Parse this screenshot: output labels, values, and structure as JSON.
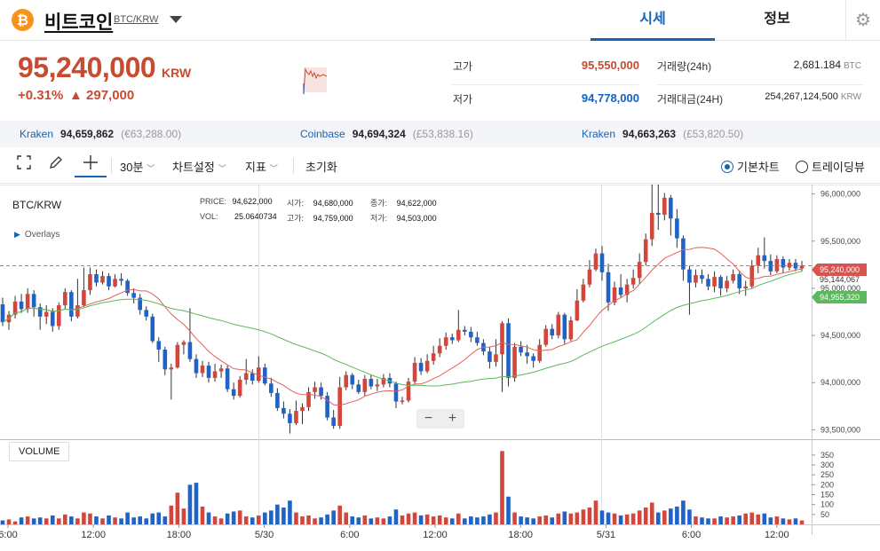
{
  "header": {
    "coin_symbol": "₿",
    "coin_name": "비트코인",
    "pair": "BTC/KRW",
    "tabs": [
      {
        "label": "시세",
        "active": true
      },
      {
        "label": "정보",
        "active": false
      }
    ],
    "settings_icon": "gear-icon"
  },
  "summary": {
    "price": "95,240,000",
    "unit": "KRW",
    "change_pct": "+0.31%",
    "change_abs": "▲ 297,000",
    "high_label": "고가",
    "high_value": "95,550,000",
    "low_label": "저가",
    "low_value": "94,778,000",
    "volume_label": "거래량(24h)",
    "volume_value": "2,681.184",
    "volume_unit": "BTC",
    "amount_label": "거래대금(24H)",
    "amount_value": "254,267,124,500",
    "amount_unit": "KRW"
  },
  "exchanges": [
    {
      "name": "Kraken",
      "price": "94,659,862",
      "converted": "(€63,288.00)"
    },
    {
      "name": "Coinbase",
      "price": "94,694,324",
      "converted": "(£53,838.16)"
    },
    {
      "name": "Kraken",
      "price": "94,663,263",
      "converted": "(£53,820.50)"
    }
  ],
  "toolbar": {
    "interval": "30분",
    "chart_settings": "차트설정",
    "indicators": "지표",
    "reset": "초기화",
    "radio_basic": "기본차트",
    "radio_tradingview": "트레이딩뷰"
  },
  "chart": {
    "pair_label": "BTC/KRW",
    "overlays_label": "Overlays",
    "ohlc": {
      "price_label": "PRICE:",
      "price_value": "94,622,000",
      "vol_label": "VOL:",
      "vol_value": "25.0640734",
      "open_label": "시가:",
      "open_value": "94,680,000",
      "high_label": "고가:",
      "high_value": "94,759,000",
      "close_label": "종가:",
      "close_value": "94,622,000",
      "low_label": "저가:",
      "low_value": "94,503,000"
    },
    "zoom_out": "−",
    "zoom_in": "+",
    "volume_label": "VOLUME",
    "last_price_tag": "95,240,000",
    "ma_short_tag": "95,144,067",
    "ma_long_tag": "94,955,320",
    "colors": {
      "up": "#d2463b",
      "down": "#1f63c7",
      "ma_short": "#e0625b",
      "ma_long": "#5cb85c"
    }
  },
  "chart_data": {
    "type": "candlestick",
    "yticks": [
      "96,000,000",
      "95,500,000",
      "95,000,000",
      "94,500,000",
      "94,000,000",
      "93,500,000"
    ],
    "ylim": [
      93400000,
      96100000
    ],
    "volume_ticks": [
      "350",
      "300",
      "250",
      "200",
      "150",
      "100",
      "50"
    ],
    "xticks": [
      "6:00",
      "12:00",
      "18:00",
      "5/30",
      "6:00",
      "12:00",
      "18:00",
      "5/31",
      "6:00",
      "12:00"
    ],
    "candles": [
      [
        94830000,
        94640000,
        94900000,
        94600000,
        20
      ],
      [
        94640000,
        94720000,
        94760000,
        94560000,
        25
      ],
      [
        94720000,
        94860000,
        94920000,
        94680000,
        15
      ],
      [
        94860000,
        94780000,
        94940000,
        94740000,
        35
      ],
      [
        94780000,
        94940000,
        95000000,
        94740000,
        40
      ],
      [
        94940000,
        94800000,
        94980000,
        94700000,
        30
      ],
      [
        94800000,
        94700000,
        94840000,
        94560000,
        35
      ],
      [
        94700000,
        94750000,
        94820000,
        94620000,
        30
      ],
      [
        94750000,
        94600000,
        94790000,
        94540000,
        45
      ],
      [
        94600000,
        94820000,
        94850000,
        94560000,
        30
      ],
      [
        94820000,
        94960000,
        95000000,
        94780000,
        50
      ],
      [
        94960000,
        94700000,
        94980000,
        94650000,
        40
      ],
      [
        94700000,
        94820000,
        95100000,
        94680000,
        30
      ],
      [
        94820000,
        94980000,
        95220000,
        94800000,
        60
      ],
      [
        94980000,
        95150000,
        95220000,
        94930000,
        55
      ],
      [
        95150000,
        95060000,
        95200000,
        95020000,
        40
      ],
      [
        95060000,
        95130000,
        95180000,
        95040000,
        30
      ],
      [
        95130000,
        95020000,
        95160000,
        94980000,
        45
      ],
      [
        95020000,
        95100000,
        95150000,
        95010000,
        35
      ],
      [
        95100000,
        95080000,
        95160000,
        95030000,
        30
      ],
      [
        95080000,
        94950000,
        95100000,
        94920000,
        60
      ],
      [
        94950000,
        94900000,
        95000000,
        94840000,
        35
      ],
      [
        94900000,
        94770000,
        94940000,
        94720000,
        40
      ],
      [
        94770000,
        94700000,
        94810000,
        94660000,
        30
      ],
      [
        94700000,
        94440000,
        94730000,
        94420000,
        55
      ],
      [
        94440000,
        94350000,
        94480000,
        94220000,
        60
      ],
      [
        94350000,
        94140000,
        94380000,
        94080000,
        40
      ],
      [
        94140000,
        94160000,
        94200000,
        93820000,
        95
      ],
      [
        94160000,
        94400000,
        94430000,
        94150000,
        160
      ],
      [
        94400000,
        94430000,
        94450000,
        94300000,
        80
      ],
      [
        94430000,
        94250000,
        94790000,
        94220000,
        200
      ],
      [
        94250000,
        94100000,
        94300000,
        94050000,
        210
      ],
      [
        94100000,
        94180000,
        94230000,
        94060000,
        90
      ],
      [
        94180000,
        94050000,
        94220000,
        94000000,
        60
      ],
      [
        94050000,
        94120000,
        94200000,
        94010000,
        40
      ],
      [
        94120000,
        94150000,
        94190000,
        94050000,
        30
      ],
      [
        94150000,
        93930000,
        94180000,
        93900000,
        55
      ],
      [
        93930000,
        93860000,
        94000000,
        93820000,
        65
      ],
      [
        93860000,
        94030000,
        94070000,
        93840000,
        70
      ],
      [
        94030000,
        94100000,
        94250000,
        93980000,
        40
      ],
      [
        94100000,
        94020000,
        94140000,
        93980000,
        35
      ],
      [
        94020000,
        94160000,
        94280000,
        94000000,
        45
      ],
      [
        94160000,
        93990000,
        94200000,
        93970000,
        60
      ],
      [
        93990000,
        93890000,
        94050000,
        93850000,
        70
      ],
      [
        93890000,
        93730000,
        93940000,
        93700000,
        100
      ],
      [
        93730000,
        93670000,
        93800000,
        93620000,
        85
      ],
      [
        93670000,
        93570000,
        93720000,
        93460000,
        120
      ],
      [
        93570000,
        93700000,
        93810000,
        93550000,
        60
      ],
      [
        93700000,
        93740000,
        93780000,
        93560000,
        40
      ],
      [
        93740000,
        93900000,
        93950000,
        93700000,
        45
      ],
      [
        93900000,
        93950000,
        94010000,
        93830000,
        30
      ],
      [
        93950000,
        93860000,
        94000000,
        93820000,
        35
      ],
      [
        93860000,
        93630000,
        93900000,
        93600000,
        50
      ],
      [
        93630000,
        93540000,
        93710000,
        93510000,
        70
      ],
      [
        93540000,
        93950000,
        94060000,
        93510000,
        95
      ],
      [
        93950000,
        94080000,
        94120000,
        93920000,
        60
      ],
      [
        94080000,
        93980000,
        94100000,
        93930000,
        40
      ],
      [
        93980000,
        93900000,
        94030000,
        93880000,
        35
      ],
      [
        93900000,
        94040000,
        94080000,
        93860000,
        45
      ],
      [
        94040000,
        93960000,
        94080000,
        93930000,
        30
      ],
      [
        93960000,
        93980000,
        94040000,
        93910000,
        35
      ],
      [
        93980000,
        94050000,
        94090000,
        93950000,
        30
      ],
      [
        94050000,
        93990000,
        94100000,
        93950000,
        40
      ],
      [
        93990000,
        93800000,
        94010000,
        93730000,
        75
      ],
      [
        93800000,
        93810000,
        93850000,
        93770000,
        45
      ],
      [
        93810000,
        94010000,
        94050000,
        93790000,
        55
      ],
      [
        94010000,
        94210000,
        94270000,
        93990000,
        60
      ],
      [
        94210000,
        94120000,
        94260000,
        94080000,
        45
      ],
      [
        94120000,
        94230000,
        94300000,
        94100000,
        50
      ],
      [
        94230000,
        94310000,
        94390000,
        94190000,
        40
      ],
      [
        94310000,
        94390000,
        94470000,
        94270000,
        45
      ],
      [
        94390000,
        94480000,
        94530000,
        94350000,
        35
      ],
      [
        94480000,
        94450000,
        94520000,
        94410000,
        30
      ],
      [
        94450000,
        94560000,
        94770000,
        94430000,
        55
      ],
      [
        94560000,
        94540000,
        94600000,
        94500000,
        30
      ],
      [
        94540000,
        94480000,
        94590000,
        94430000,
        40
      ],
      [
        94480000,
        94420000,
        94540000,
        94390000,
        35
      ],
      [
        94420000,
        94330000,
        94460000,
        94290000,
        40
      ],
      [
        94330000,
        94220000,
        94380000,
        94150000,
        50
      ],
      [
        94220000,
        94300000,
        94460000,
        94170000,
        60
      ],
      [
        94300000,
        94630000,
        94650000,
        93900000,
        370
      ],
      [
        94630000,
        94050000,
        94680000,
        93960000,
        140
      ],
      [
        94050000,
        94380000,
        94420000,
        94010000,
        60
      ],
      [
        94380000,
        94320000,
        94440000,
        94280000,
        40
      ],
      [
        94320000,
        94280000,
        94400000,
        94200000,
        35
      ],
      [
        94280000,
        94230000,
        94310000,
        94160000,
        30
      ],
      [
        94230000,
        94400000,
        94460000,
        94210000,
        40
      ],
      [
        94400000,
        94570000,
        94610000,
        94380000,
        45
      ],
      [
        94570000,
        94500000,
        94620000,
        94460000,
        35
      ],
      [
        94500000,
        94720000,
        94750000,
        94470000,
        55
      ],
      [
        94720000,
        94460000,
        94740000,
        94410000,
        65
      ],
      [
        94460000,
        94660000,
        94700000,
        94440000,
        55
      ],
      [
        94660000,
        94870000,
        94990000,
        94650000,
        60
      ],
      [
        94870000,
        95040000,
        95100000,
        94850000,
        75
      ],
      [
        95040000,
        95200000,
        95300000,
        95010000,
        85
      ],
      [
        95200000,
        95370000,
        95420000,
        95180000,
        120
      ],
      [
        95370000,
        95170000,
        95450000,
        95080000,
        70
      ],
      [
        95170000,
        94850000,
        95260000,
        94760000,
        60
      ],
      [
        94850000,
        95010000,
        95070000,
        94820000,
        55
      ],
      [
        95010000,
        94930000,
        95150000,
        94900000,
        45
      ],
      [
        94930000,
        95040000,
        95100000,
        94850000,
        50
      ],
      [
        95040000,
        95110000,
        95200000,
        95000000,
        55
      ],
      [
        95110000,
        95280000,
        95370000,
        95050000,
        70
      ],
      [
        95280000,
        95520000,
        95580000,
        95240000,
        85
      ],
      [
        95520000,
        95800000,
        96110000,
        95450000,
        110
      ],
      [
        95800000,
        95780000,
        96110000,
        95620000,
        60
      ],
      [
        95780000,
        95960000,
        96010000,
        95720000,
        70
      ],
      [
        95960000,
        95740000,
        95990000,
        95560000,
        80
      ],
      [
        95740000,
        95530000,
        95840000,
        95430000,
        90
      ],
      [
        95530000,
        95200000,
        95560000,
        95080000,
        120
      ],
      [
        95200000,
        95060000,
        95240000,
        94720000,
        75
      ],
      [
        95060000,
        95140000,
        95200000,
        95010000,
        40
      ],
      [
        95140000,
        95100000,
        95200000,
        95050000,
        35
      ],
      [
        95100000,
        95020000,
        95150000,
        94980000,
        30
      ],
      [
        95020000,
        95120000,
        95180000,
        94960000,
        30
      ],
      [
        95120000,
        95000000,
        95140000,
        94920000,
        40
      ],
      [
        95000000,
        95080000,
        95130000,
        94960000,
        35
      ],
      [
        95080000,
        95150000,
        95200000,
        95050000,
        40
      ],
      [
        95150000,
        95000000,
        95190000,
        94940000,
        45
      ],
      [
        95000000,
        95020000,
        95080000,
        94920000,
        55
      ],
      [
        95020000,
        95240000,
        95300000,
        95000000,
        60
      ],
      [
        95240000,
        95350000,
        95430000,
        95160000,
        50
      ],
      [
        95350000,
        95290000,
        95540000,
        95210000,
        55
      ],
      [
        95290000,
        95180000,
        95360000,
        95140000,
        35
      ],
      [
        95180000,
        95310000,
        95350000,
        95160000,
        40
      ],
      [
        95310000,
        95220000,
        95340000,
        95160000,
        30
      ],
      [
        95220000,
        95270000,
        95310000,
        95190000,
        25
      ],
      [
        95270000,
        95210000,
        95310000,
        95180000,
        30
      ],
      [
        95210000,
        95240000,
        95290000,
        95180000,
        20
      ]
    ]
  }
}
